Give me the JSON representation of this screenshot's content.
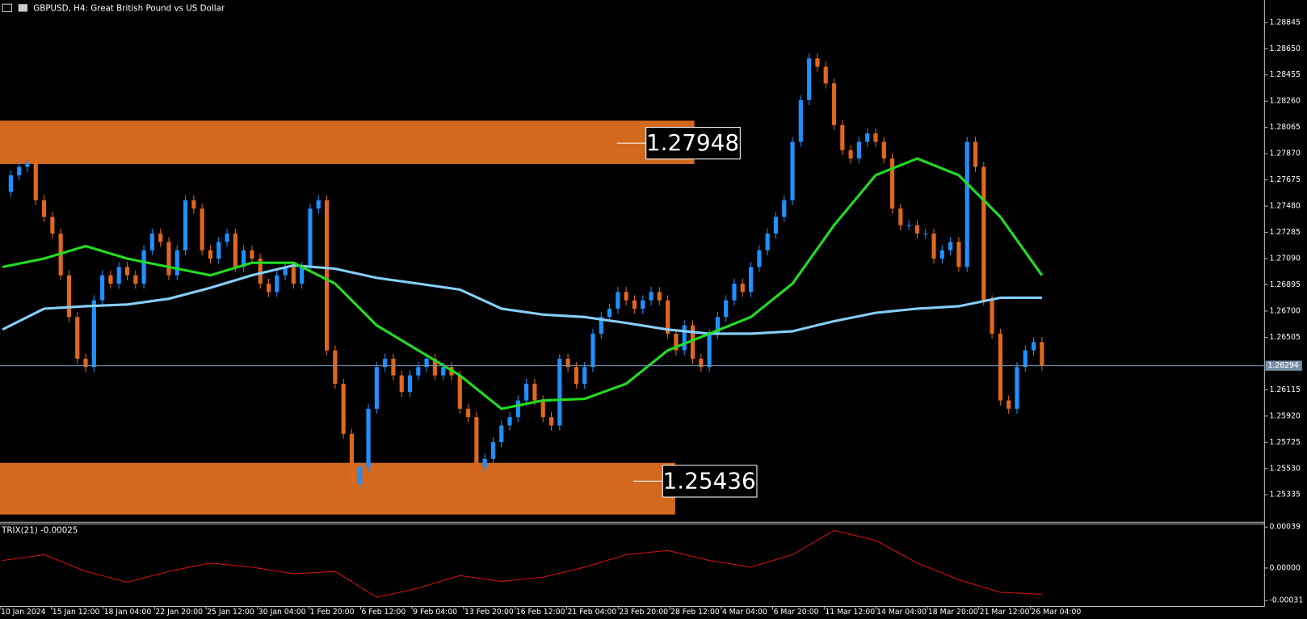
{
  "header": {
    "title": "GBPUSD, H4:  Great British Pound vs US Dollar"
  },
  "price_chart": {
    "ylim": [
      1.25137,
      1.29012
    ],
    "yticks": [
      1.28845,
      {
        "value": 1.2865,
        "label": "1.28650"
      },
      1.28455,
      {
        "value": 1.2826,
        "label": "1.28260"
      },
      1.28065,
      {
        "value": 1.2787,
        "label": "1.27870"
      },
      1.27675,
      {
        "value": 1.2748,
        "label": "1.27480"
      },
      1.27285,
      {
        "value": 1.2709,
        "label": "1.27090"
      },
      1.26895,
      {
        "value": 1.267,
        "label": "1.26700"
      },
      1.26505,
      1.26115,
      {
        "value": 1.2592,
        "label": "1.25920"
      },
      1.25725,
      {
        "value": 1.2553,
        "label": "1.25530"
      },
      1.25335
    ],
    "current_price": 1.26294,
    "zones": [
      1.27948,
      1.25436
    ],
    "closes": [
      1.27586,
      1.2771,
      1.27772,
      1.27803,
      1.27524,
      1.274,
      1.27276,
      1.26966,
      1.26656,
      1.26346,
      1.26284,
      1.2678,
      1.26966,
      1.26904,
      1.27028,
      1.26966,
      1.26904,
      1.27152,
      1.27276,
      1.27214,
      1.26966,
      1.27152,
      1.27524,
      1.27462,
      1.27152,
      1.2709,
      1.27214,
      1.27276,
      1.27028,
      1.27152,
      1.2709,
      1.26904,
      1.26842,
      1.26966,
      1.27028,
      1.26904,
      1.27028,
      1.27462,
      1.27524,
      1.26408,
      1.2616,
      1.25788,
      1.25416,
      1.2554,
      1.25974,
      1.26284,
      1.26346,
      1.26222,
      1.26098,
      1.26222,
      1.26284,
      1.26346,
      1.26222,
      1.26284,
      1.26222,
      1.25974,
      1.25912,
      1.2554,
      1.25602,
      1.25726,
      1.2585,
      1.25912,
      1.26036,
      1.2616,
      1.26036,
      1.25912,
      1.2585,
      1.26346,
      1.26284,
      1.2616,
      1.26284,
      1.26532,
      1.26656,
      1.26718,
      1.26842,
      1.2678,
      1.26718,
      1.2678,
      1.26842,
      1.2678,
      1.26532,
      1.26408,
      1.26594,
      1.26346,
      1.26284,
      1.26532,
      1.26656,
      1.2678,
      1.26904,
      1.26842,
      1.27028,
      1.27152,
      1.27276,
      1.274,
      1.27524,
      1.27958,
      1.28268,
      1.28578,
      1.28516,
      1.28392,
      1.28082,
      1.27896,
      1.27834,
      1.27958,
      1.2802,
      1.27958,
      1.27834,
      1.27462,
      1.27338,
      1.27338,
      1.27276,
      1.27276,
      1.2709,
      1.27152,
      1.27214,
      1.27028,
      1.27958,
      1.27772,
      1.2678,
      1.26532,
      1.26036,
      1.25974,
      1.26284,
      1.26408,
      1.2647,
      1.26294
    ],
    "ma_fast": [
      1.27028,
      1.2709,
      1.27183,
      1.2709,
      1.27028,
      1.26966,
      1.27059,
      1.27059,
      1.26904,
      1.26594,
      1.26408,
      1.26222,
      1.25974,
      1.26036,
      1.26048,
      1.2616,
      1.26408,
      1.26532,
      1.26656,
      1.26904,
      1.27338,
      1.2771,
      1.27834,
      1.2771,
      1.274,
      1.26966
    ],
    "ma_slow": [
      1.26563,
      1.26718,
      1.26736,
      1.26749,
      1.26792,
      1.26873,
      1.26966,
      1.2704,
      1.27015,
      1.26947,
      1.26904,
      1.2686,
      1.26718,
      1.26674,
      1.26656,
      1.26612,
      1.26563,
      1.26532,
      1.26532,
      1.2655,
      1.26625,
      1.26687,
      1.26718,
      1.26736,
      1.26799,
      1.26799
    ],
    "time_labels": [
      "10 Jan 2024",
      "15 Jan 12:00",
      "18 Jan 04:00",
      "22 Jan 20:00",
      "25 Jan 12:00",
      "30 Jan 04:00",
      "1 Feb 20:00",
      "6 Feb 12:00",
      "9 Feb 04:00",
      "13 Feb 20:00",
      "16 Feb 12:00",
      "21 Feb 04:00",
      "23 Feb 20:00",
      "28 Feb 12:00",
      "4 Mar 04:00",
      "6 Mar 20:00",
      "11 Mar 12:00",
      "14 Mar 04:00",
      "18 Mar 20:00",
      "21 Mar 12:00",
      "26 Mar 04:00"
    ]
  },
  "trix": {
    "label": "TRIX(21) -0.00025",
    "ylim": [
      -0.00035,
      0.00042
    ],
    "yticks": [
      0.00039,
      {
        "value": 0,
        "label": "0.00000"
      },
      -0.00031
    ],
    "values": [
      7.16e-05,
      0.000127,
      -3.18e-05,
      -0.000135,
      -3.18e-05,
      4.78e-05,
      8e-06,
      -5.57e-05,
      -3.18e-05,
      -0.000279,
      -0.000191,
      -7.16e-05,
      -0.000127,
      -8.76e-05,
      8e-06,
      0.000127,
      0.000167,
      7.16e-05,
      8e-06,
      0.000127,
      0.000358,
      0.000263,
      4.78e-05,
      -0.000111,
      -0.000231,
      -0.00025
    ]
  }
}
